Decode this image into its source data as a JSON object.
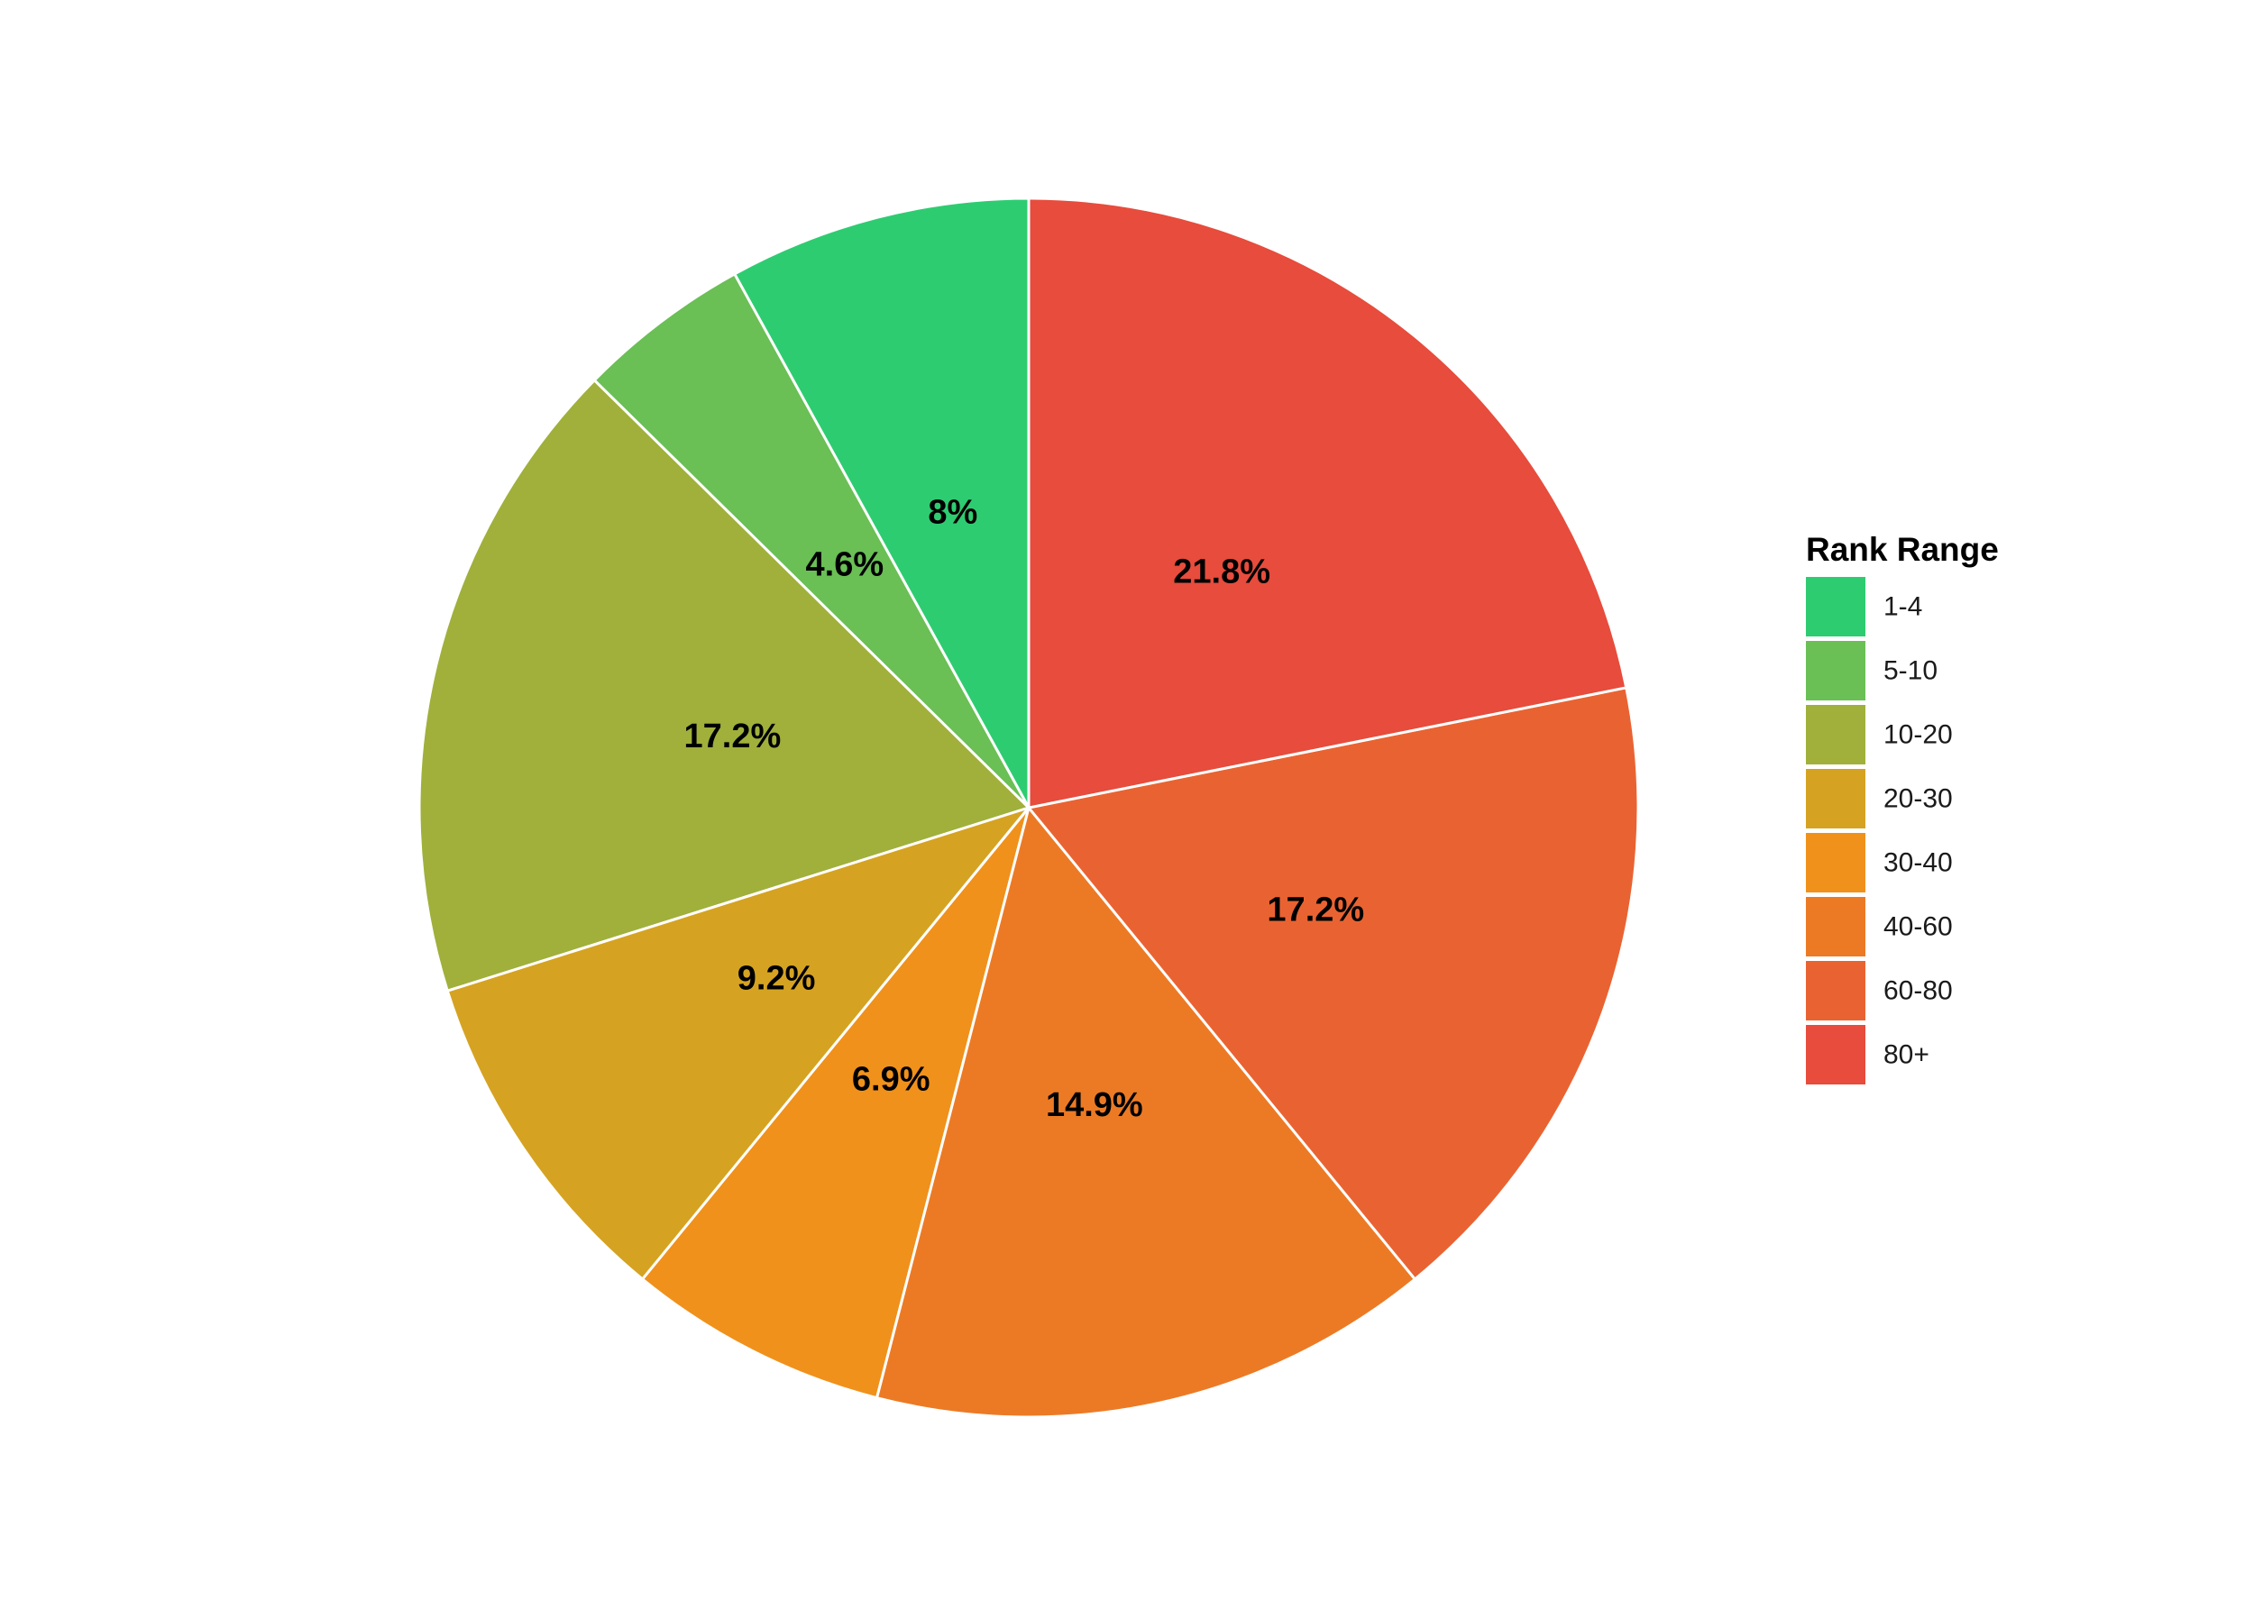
{
  "chart_data": {
    "type": "pie",
    "legend": {
      "title": "Rank Range",
      "position": "right"
    },
    "start_angle_deg": 0,
    "direction": "counterclockwise",
    "slices": [
      {
        "category": "1-4",
        "value": 8.0,
        "label": "8%",
        "color": "#2ecc71"
      },
      {
        "category": "5-10",
        "value": 4.6,
        "label": "4.6%",
        "color": "#6abf55"
      },
      {
        "category": "10-20",
        "value": 17.2,
        "label": "17.2%",
        "color": "#a0b03b"
      },
      {
        "category": "20-30",
        "value": 9.2,
        "label": "9.2%",
        "color": "#d5a321"
      },
      {
        "category": "30-40",
        "value": 6.9,
        "label": "6.9%",
        "color": "#f0911b"
      },
      {
        "category": "40-60",
        "value": 14.9,
        "label": "14.9%",
        "color": "#ec7a25"
      },
      {
        "category": "60-80",
        "value": 17.2,
        "label": "17.2%",
        "color": "#e96332"
      },
      {
        "category": "80+",
        "value": 21.8,
        "label": "21.8%",
        "color": "#e74c3c"
      }
    ]
  }
}
